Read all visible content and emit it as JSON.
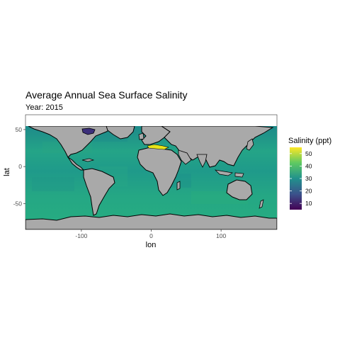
{
  "title": "Average Annual Sea Surface Salinity",
  "subtitle": "Year: 2015",
  "map": {
    "type": "world-raster-map",
    "projection": "equirectangular",
    "xlim": [
      -180,
      180
    ],
    "ylim": [
      -85,
      70
    ],
    "grid": false,
    "land_color": "#a9a9a9",
    "border_color": "#000000",
    "panel_color": "#ffffff"
  },
  "axes": {
    "xlabel": "lon",
    "ylabel": "lat",
    "xticks": [
      {
        "value": -100,
        "label": "-100"
      },
      {
        "value": 0,
        "label": "0"
      },
      {
        "value": 100,
        "label": "100"
      }
    ],
    "yticks": [
      {
        "value": 50,
        "label": "50"
      },
      {
        "value": 0,
        "label": "0"
      },
      {
        "value": -50,
        "label": "-50"
      }
    ]
  },
  "legend": {
    "title": "Salinity (ppt)",
    "placement": "right",
    "range": [
      5,
      55
    ],
    "ticks": [
      {
        "value": 50,
        "label": "50"
      },
      {
        "value": 40,
        "label": "40"
      },
      {
        "value": 30,
        "label": "30"
      },
      {
        "value": 20,
        "label": "20"
      },
      {
        "value": 10,
        "label": "10"
      }
    ],
    "palette": "viridis",
    "colors": [
      "#440154",
      "#3b528b",
      "#21918c",
      "#5ec962",
      "#fde725"
    ]
  },
  "ocean_salinity_typical": 34,
  "highlights": [
    {
      "region": "Hudson Bay",
      "salinity": 15,
      "color": "#3b2f7a"
    },
    {
      "region": "Mediterranean Sea",
      "salinity": 54,
      "color": "#e8e419"
    }
  ]
}
